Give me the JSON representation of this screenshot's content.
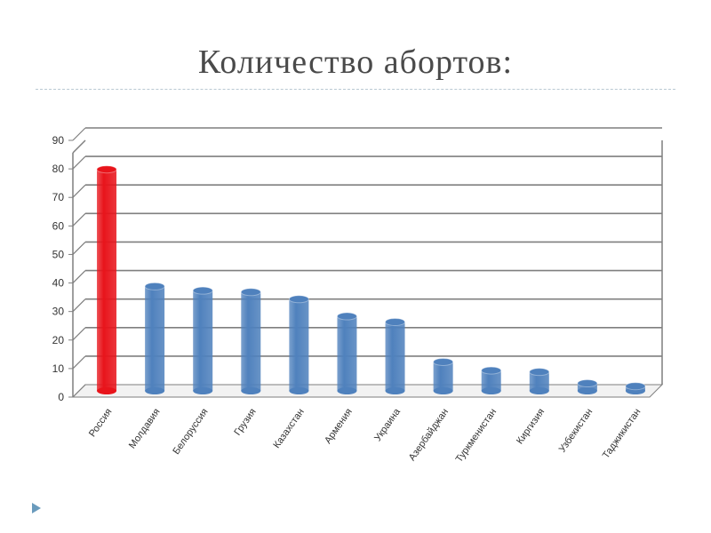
{
  "slide": {
    "title": "Количество абортов:"
  },
  "icons": {
    "bullet": "triangle-bullet-icon"
  },
  "colors": {
    "highlight": "#e8141b",
    "bars": "#4f81bd",
    "grid": "#7f7f7f"
  },
  "chart_data": {
    "type": "bar",
    "title": "",
    "xlabel": "",
    "ylabel": "",
    "ylim": [
      0,
      90
    ],
    "yticks": [
      "0",
      "10",
      "20",
      "30",
      "40",
      "50",
      "60",
      "70",
      "80",
      "90"
    ],
    "grid": true,
    "categories": [
      "Россия",
      "Молдавия",
      "Белоруссия",
      "Грузия",
      "Казахстан",
      "Армения",
      "Украина",
      "Азербайджан",
      "Туркменистан",
      "Киргизия",
      "Узбекистан",
      "Таджикистан"
    ],
    "values": [
      82,
      41,
      39.5,
      39,
      36.5,
      30.5,
      28.5,
      14.5,
      11.5,
      11,
      7,
      6
    ],
    "highlighted_category": "Россия"
  }
}
